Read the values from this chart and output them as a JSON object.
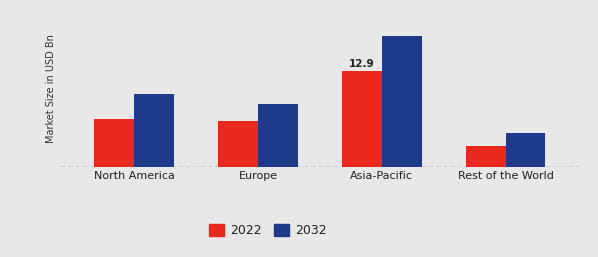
{
  "categories": [
    "North America",
    "Europe",
    "Asia-Pacific",
    "Rest of the World"
  ],
  "values_2022": [
    6.5,
    6.2,
    12.9,
    2.8
  ],
  "values_2032": [
    9.8,
    8.5,
    17.5,
    4.5
  ],
  "color_2022": "#e8291c",
  "color_2032": "#1e3a8a",
  "ylabel": "Market Size in USD Bn",
  "annotation_label": "12.9",
  "annotation_category": 2,
  "background_color": "#e8e8e8",
  "bar_width": 0.32,
  "legend_labels": [
    "2022",
    "2032"
  ],
  "ylim": [
    0,
    21
  ],
  "xlabel_fontsize": 8,
  "ylabel_fontsize": 7,
  "legend_fontsize": 9
}
